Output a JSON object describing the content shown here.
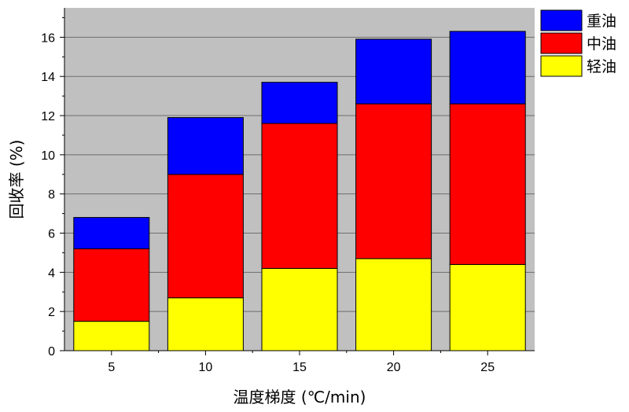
{
  "chart_data": {
    "type": "bar",
    "stacked": true,
    "categories": [
      "5",
      "10",
      "15",
      "20",
      "25"
    ],
    "series": [
      {
        "name": "轻油",
        "color": "#ffff00",
        "values": [
          1.5,
          2.7,
          4.2,
          4.7,
          4.4
        ]
      },
      {
        "name": "中油",
        "color": "#ff0000",
        "values": [
          3.7,
          6.3,
          7.4,
          7.9,
          8.2
        ]
      },
      {
        "name": "重油",
        "color": "#0000ff",
        "values": [
          1.6,
          2.9,
          2.1,
          3.3,
          3.7
        ]
      }
    ],
    "xlabel": "温度梯度 (℃/min)",
    "ylabel": "回收率 (%)",
    "ylim": [
      0,
      17.5
    ],
    "yticks": [
      0,
      2,
      4,
      6,
      8,
      10,
      12,
      14,
      16
    ],
    "grid": true,
    "background": "#c0c0c0",
    "legend": "top-right",
    "legend_order": [
      "重油",
      "中油",
      "轻油"
    ]
  }
}
